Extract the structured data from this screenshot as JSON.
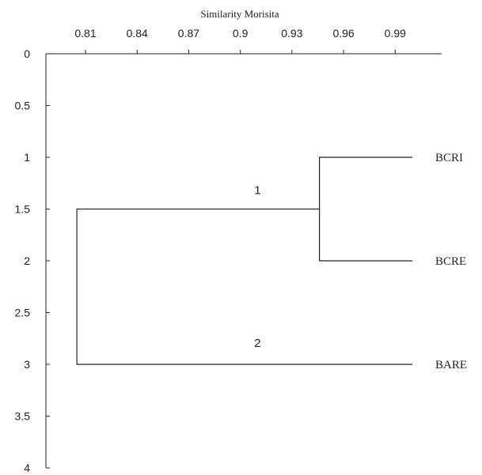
{
  "chart_data": {
    "type": "dendrogram",
    "xlabel": "Similarity Morisita",
    "ylabel": "",
    "x_ticks": [
      0.81,
      0.84,
      0.87,
      0.9,
      0.93,
      0.96,
      0.99
    ],
    "y_ticks": [
      "0",
      "0.5",
      "1",
      "1.5",
      "2",
      "2.5",
      "3",
      "3.5",
      "4"
    ],
    "xlim": [
      0.787,
      1.017
    ],
    "ylim": [
      0,
      4
    ],
    "leaves": [
      {
        "label": "BCRI",
        "y": 1
      },
      {
        "label": "BCRE",
        "y": 2
      },
      {
        "label": "BARE",
        "y": 3
      }
    ],
    "merges": [
      {
        "name": "1",
        "similarity": 0.946,
        "y_top": 1,
        "y_bottom": 2,
        "y_out": 1.5
      },
      {
        "name": "2",
        "similarity": 0.805,
        "y_top": 1.5,
        "y_bottom": 3,
        "y_out": 2.25
      }
    ],
    "leaf_end_similarity": 1.0
  }
}
